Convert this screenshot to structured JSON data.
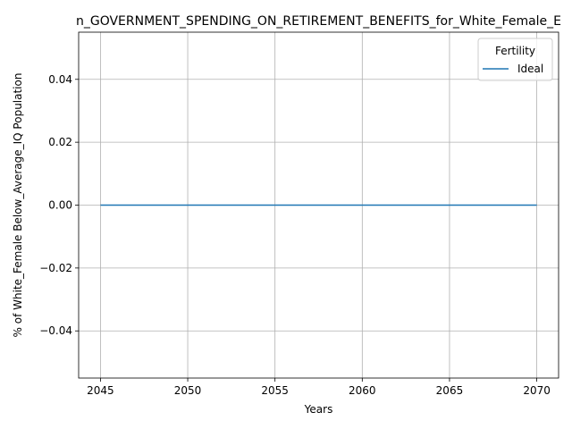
{
  "chart_data": {
    "type": "line",
    "title": "n_GOVERNMENT_SPENDING_ON_RETIREMENT_BENEFITS_for_White_Female_E",
    "xlabel": "Years",
    "ylabel": "% of White_Female Below_Average_IQ Population",
    "xlim": [
      2043.75,
      2071.25
    ],
    "ylim": [
      -0.055,
      0.055
    ],
    "x_ticks": [
      2045,
      2050,
      2055,
      2060,
      2065,
      2070
    ],
    "y_ticks": [
      -0.04,
      -0.02,
      0.0,
      0.02,
      0.04
    ],
    "x_tick_labels": [
      "2045",
      "2050",
      "2055",
      "2060",
      "2065",
      "2070"
    ],
    "y_tick_labels": [
      "−0.04",
      "−0.02",
      "0.00",
      "0.02",
      "0.04"
    ],
    "grid": true,
    "legend": {
      "title": "Fertility",
      "position": "top-right"
    },
    "series": [
      {
        "name": "Ideal",
        "color": "#1f77b4",
        "x": [
          2045,
          2050,
          2055,
          2060,
          2065,
          2070
        ],
        "y": [
          0,
          0,
          0,
          0,
          0,
          0
        ]
      }
    ]
  }
}
